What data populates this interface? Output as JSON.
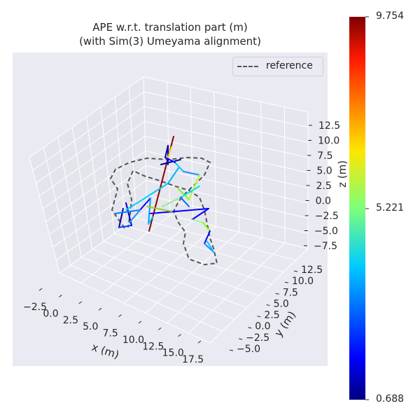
{
  "chart_data": {
    "type": "line3d",
    "title_line1": "APE w.r.t. translation part (m)",
    "title_line2": "(with Sim(3) Umeyama alignment)",
    "xlabel": "x (m)",
    "ylabel": "y (m)",
    "zlabel": "z (m)",
    "xticks": [
      "−2.5",
      "0.0",
      "2.5",
      "5.0",
      "7.5",
      "10.0",
      "12.5",
      "15.0",
      "17.5"
    ],
    "yticks": [
      "−5.0",
      "−2.5",
      "0.0",
      "2.5",
      "5.0",
      "7.5",
      "10.0",
      "12.5"
    ],
    "zticks": [
      "12.5",
      "10.0",
      "7.5",
      "5.0",
      "2.5",
      "0.0",
      "−2.5",
      "−5.0",
      "−7.5"
    ],
    "legend": [
      "reference"
    ],
    "reference_color": "#555555",
    "colorbar": {
      "min": 0.688,
      "max": 9.754,
      "mid": 5.221,
      "labels": [
        "9.754",
        "5.221",
        "0.688"
      ],
      "colormap": "jet"
    }
  }
}
